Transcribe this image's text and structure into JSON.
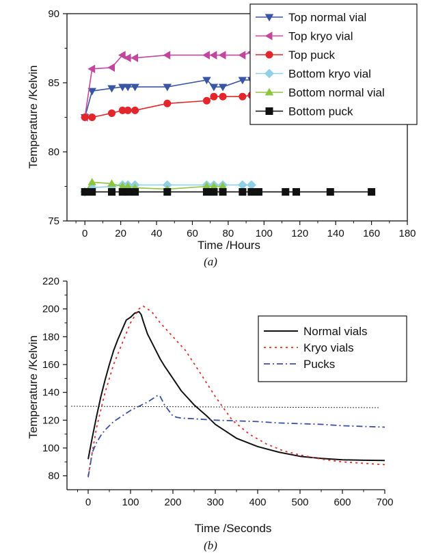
{
  "figure": {
    "panels": [
      {
        "caption": "(a)"
      },
      {
        "caption": "(b)"
      }
    ]
  },
  "chart_data": [
    {
      "type": "line",
      "xlabel": "Time /Hours",
      "ylabel": "Temperature /Kelvin",
      "xlim": [
        -10,
        180
      ],
      "ylim": [
        75,
        90
      ],
      "xticks": [
        0,
        20,
        40,
        60,
        80,
        100,
        120,
        140,
        160,
        180
      ],
      "yticks": [
        75,
        80,
        85,
        90
      ],
      "legend": "top-right",
      "series": [
        {
          "name": "Top normal vial",
          "color": "#3a55a4",
          "marker": "triangle-down",
          "x": [
            0,
            4,
            15,
            21,
            24,
            28,
            46,
            68,
            72,
            77,
            88,
            93
          ],
          "y": [
            82.5,
            84.4,
            84.6,
            84.7,
            84.7,
            84.7,
            84.7,
            85.2,
            84.7,
            84.7,
            85.2,
            85.2
          ]
        },
        {
          "name": "Top kryo vial",
          "color": "#c2469e",
          "marker": "triangle-left",
          "x": [
            0,
            4,
            15,
            21,
            24,
            28,
            46,
            68,
            72,
            77,
            88,
            93
          ],
          "y": [
            82.5,
            86.0,
            86.1,
            87.0,
            86.8,
            86.8,
            87.0,
            87.0,
            87.0,
            87.0,
            87.0,
            87.2
          ]
        },
        {
          "name": "Top puck",
          "color": "#e3262b",
          "marker": "circle",
          "x": [
            0,
            4,
            15,
            21,
            24,
            28,
            46,
            68,
            72,
            77,
            88,
            93,
            97
          ],
          "y": [
            82.5,
            82.5,
            82.8,
            83.0,
            83.0,
            83.0,
            83.5,
            83.7,
            84.0,
            84.0,
            84.0,
            84.1,
            84.2
          ]
        },
        {
          "name": "Bottom kryo vial",
          "color": "#8fd0e8",
          "marker": "diamond",
          "x": [
            0,
            4,
            15,
            21,
            24,
            28,
            46,
            68,
            72,
            77,
            88,
            93
          ],
          "y": [
            77.1,
            77.4,
            77.5,
            77.6,
            77.6,
            77.6,
            77.6,
            77.6,
            77.6,
            77.6,
            77.6,
            77.6
          ]
        },
        {
          "name": "Bottom normal vial",
          "color": "#8cc63e",
          "marker": "triangle-up",
          "x": [
            0,
            4,
            15,
            21,
            24,
            28,
            46,
            68,
            72,
            77
          ],
          "y": [
            77.1,
            77.8,
            77.7,
            77.5,
            77.5,
            77.4,
            77.3,
            77.5,
            77.5,
            77.5
          ]
        },
        {
          "name": "Bottom puck",
          "color": "#111111",
          "marker": "square",
          "x": [
            0,
            4,
            15,
            21,
            24,
            28,
            46,
            68,
            72,
            77,
            88,
            93,
            97,
            112,
            118,
            137,
            160
          ],
          "y": [
            77.1,
            77.1,
            77.1,
            77.1,
            77.1,
            77.1,
            77.1,
            77.1,
            77.1,
            77.1,
            77.1,
            77.1,
            77.1,
            77.1,
            77.1,
            77.1,
            77.1
          ]
        }
      ]
    },
    {
      "type": "line",
      "xlabel": "Time /Seconds",
      "ylabel": "Temperature /Kelvin",
      "xlim": [
        -50,
        700
      ],
      "ylim": [
        70,
        220
      ],
      "xticks": [
        0,
        100,
        200,
        300,
        400,
        500,
        600,
        700
      ],
      "yticks": [
        80,
        100,
        120,
        140,
        160,
        180,
        200,
        220
      ],
      "legend": "right",
      "reference_line": {
        "y": [
          130,
          129
        ],
        "x": [
          -50,
          700
        ],
        "style": "dotted",
        "color": "#333333"
      },
      "series": [
        {
          "name": "Normal vials",
          "color": "#111111",
          "style": "solid",
          "x": [
            0,
            10,
            20,
            30,
            40,
            50,
            60,
            70,
            80,
            90,
            100,
            110,
            120,
            125,
            130,
            140,
            150,
            160,
            170,
            180,
            200,
            220,
            250,
            280,
            300,
            320,
            350,
            400,
            450,
            500,
            550,
            600,
            650,
            700
          ],
          "y": [
            92,
            108,
            123,
            137,
            149,
            160,
            170,
            178,
            185,
            192,
            194,
            197,
            198,
            196,
            191,
            182,
            176,
            170,
            164,
            159,
            150,
            141,
            131,
            123,
            117,
            113,
            107,
            101,
            97,
            94,
            92.5,
            91.5,
            91.2,
            91
          ]
        },
        {
          "name": "Kryo vials",
          "color": "#e0302a",
          "style": "dotted",
          "x": [
            0,
            20,
            40,
            60,
            80,
            100,
            120,
            130,
            150,
            170,
            200,
            230,
            260,
            300,
            340,
            380,
            420,
            460,
            500,
            550,
            600,
            650,
            700
          ],
          "y": [
            80,
            115,
            140,
            160,
            175,
            190,
            200,
            202,
            198,
            190,
            180,
            170,
            156,
            137,
            120,
            110,
            103,
            98,
            95,
            92,
            90,
            89,
            88
          ]
        },
        {
          "name": "Pucks",
          "color": "#3a4fa0",
          "style": "dashdot",
          "x": [
            0,
            10,
            20,
            30,
            40,
            50,
            60,
            80,
            100,
            120,
            140,
            160,
            165,
            170,
            180,
            190,
            200,
            210,
            220,
            250,
            300,
            350,
            400,
            450,
            500,
            550,
            600,
            650,
            700
          ],
          "y": [
            79,
            97,
            104,
            109,
            113,
            116,
            119,
            123,
            127,
            130,
            133,
            137,
            138,
            137,
            131,
            127,
            123,
            122,
            121.5,
            121,
            120,
            119.5,
            119,
            118,
            117.5,
            117,
            116,
            115.5,
            115
          ]
        }
      ]
    }
  ]
}
